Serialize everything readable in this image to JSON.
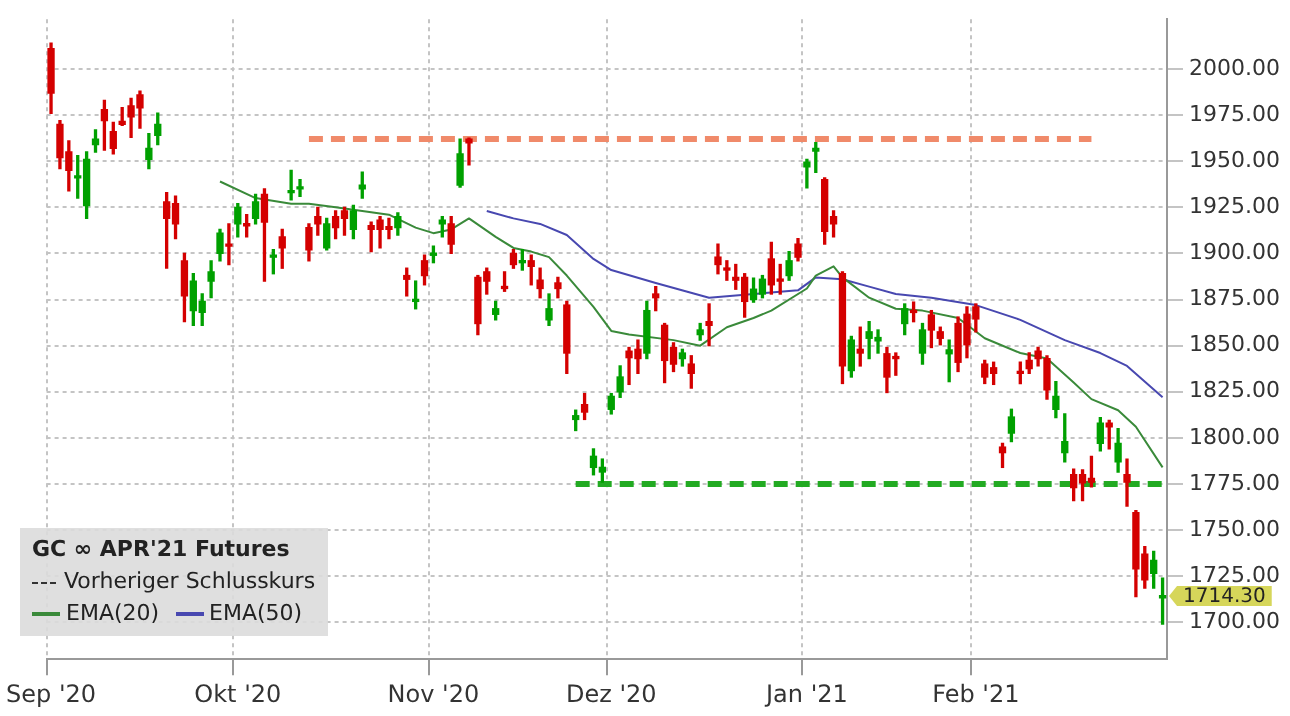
{
  "chart_data": {
    "type": "candlestick",
    "legend_title": "GC ∞ APR'21 Futures",
    "legend": "bottom left",
    "grid": true,
    "categories": [
      "Sep '20",
      null,
      null,
      null,
      null,
      null,
      null,
      null,
      null,
      null,
      null,
      null,
      null,
      null,
      null,
      null,
      null,
      null,
      null,
      null,
      null,
      "Okt '20",
      null,
      null,
      null,
      null,
      null,
      null,
      null,
      null,
      null,
      null,
      null,
      null,
      null,
      null,
      null,
      null,
      null,
      null,
      null,
      null,
      null,
      "Nov '20",
      null,
      null,
      null,
      null,
      null,
      null,
      null,
      null,
      null,
      null,
      null,
      null,
      null,
      null,
      null,
      null,
      null,
      null,
      null,
      "Dez '20",
      null,
      null,
      null,
      null,
      null,
      null,
      null,
      null,
      null,
      null,
      null,
      null,
      null,
      null,
      null,
      null,
      null,
      null,
      null,
      null,
      null,
      "Jan '21",
      null,
      null,
      null,
      null,
      null,
      null,
      null,
      null,
      null,
      null,
      null,
      null,
      null,
      null,
      null,
      null,
      null,
      null,
      "Feb '21",
      null,
      null,
      null,
      null,
      null,
      null,
      null,
      null,
      null,
      null,
      null,
      null,
      null,
      null,
      null,
      null,
      null,
      null,
      null,
      null,
      null
    ],
    "ohlc": [
      [
        2011,
        2014,
        1976,
        1987
      ],
      [
        1970,
        1972,
        1946,
        1952
      ],
      [
        1955,
        1961,
        1934,
        1945
      ],
      [
        1941,
        1953,
        1930,
        1942
      ],
      [
        1926,
        1955,
        1919,
        1951
      ],
      [
        1959,
        1967,
        1955,
        1962
      ],
      [
        1978,
        1983,
        1956,
        1972
      ],
      [
        1966,
        1971,
        1954,
        1957
      ],
      [
        1971.6,
        1979,
        1969.5,
        1970
      ],
      [
        1980,
        1984,
        1963,
        1974
      ],
      [
        1986,
        1988,
        1968,
        1979
      ],
      [
        1951,
        1965,
        1946,
        1957
      ],
      [
        1964,
        1976,
        1959,
        1970
      ],
      [
        1928,
        1933,
        1892,
        1919
      ],
      [
        1927,
        1931,
        1908,
        1916
      ],
      [
        1896,
        1900,
        1863,
        1877
      ],
      [
        1869,
        1889,
        1861,
        1885
      ],
      [
        1868,
        1878,
        1861,
        1874
      ],
      [
        1885,
        1896,
        1876,
        1890
      ],
      [
        1900,
        1913,
        1896,
        1911
      ],
      [
        1905,
        1916,
        1894,
        1904
      ],
      [
        1916,
        1927,
        1909,
        1925
      ],
      [
        1916,
        1921,
        1909,
        1915
      ],
      [
        1919,
        1932,
        1916,
        1928
      ],
      [
        1932,
        1935,
        1885,
        1917
      ],
      [
        1898,
        1902,
        1889,
        1899
      ],
      [
        1909,
        1913,
        1892,
        1903
      ],
      [
        1933,
        1945,
        1929,
        1934
      ],
      [
        1935,
        1940,
        1931,
        1936
      ],
      [
        1914,
        1916,
        1896,
        1902
      ],
      [
        1920,
        1925,
        1910,
        1916
      ],
      [
        1903,
        1919,
        1902,
        1916
      ],
      [
        1920,
        1923,
        1908,
        1914
      ],
      [
        1923,
        1925,
        1910,
        1919
      ],
      [
        1913,
        1926,
        1908,
        1923
      ],
      [
        1935,
        1944,
        1930,
        1937
      ],
      [
        1915,
        1917,
        1901,
        1913
      ],
      [
        1918,
        1920,
        1903,
        1913
      ],
      [
        1914.5,
        1919,
        1908,
        1913
      ],
      [
        1914,
        1922,
        1910,
        1920
      ],
      [
        1888,
        1892,
        1877,
        1886
      ],
      [
        1874,
        1885,
        1870,
        1875
      ],
      [
        1896,
        1899,
        1883,
        1888
      ],
      [
        1899,
        1904,
        1895,
        1900
      ],
      [
        1916,
        1920,
        1909,
        1918
      ],
      [
        1916,
        1920,
        1900,
        1905
      ],
      [
        1937,
        1962,
        1936,
        1954
      ],
      [
        1962,
        1962.5,
        1948,
        1960
      ],
      [
        1887,
        1888,
        1856,
        1862
      ],
      [
        1890,
        1892,
        1878,
        1885
      ],
      [
        1867,
        1874,
        1864,
        1870
      ],
      [
        1882,
        1890,
        1879.5,
        1881
      ],
      [
        1900,
        1902,
        1892,
        1894
      ],
      [
        1895,
        1902,
        1891,
        1896
      ],
      [
        1896,
        1899,
        1883,
        1893
      ],
      [
        1885.5,
        1892,
        1876,
        1881
      ],
      [
        1864,
        1878,
        1861,
        1870
      ],
      [
        1884,
        1887,
        1876,
        1881
      ],
      [
        1872,
        1874,
        1835,
        1846
      ],
      [
        1810,
        1815,
        1804,
        1812
      ],
      [
        1818,
        1824,
        1810,
        1814
      ],
      [
        1784,
        1794,
        1780,
        1790
      ],
      [
        1781.5,
        1788.5,
        1776,
        1784
      ],
      [
        1815.5,
        1824,
        1813,
        1822.5
      ],
      [
        1825,
        1839,
        1822,
        1833
      ],
      [
        1847,
        1849,
        1829,
        1843.5
      ],
      [
        1848,
        1853,
        1835,
        1843
      ],
      [
        1846,
        1874,
        1843,
        1869
      ],
      [
        1878,
        1882,
        1869,
        1876
      ],
      [
        1861,
        1862,
        1830,
        1842
      ],
      [
        1849,
        1851.5,
        1836,
        1840
      ],
      [
        1843,
        1848,
        1839,
        1846
      ],
      [
        1840,
        1844.5,
        1827,
        1835
      ],
      [
        1856,
        1862,
        1853,
        1858.5
      ],
      [
        1863,
        1872.6,
        1850,
        1861
      ],
      [
        1898,
        1905,
        1889,
        1894
      ],
      [
        1892,
        1896,
        1885.5,
        1891
      ],
      [
        1887,
        1894,
        1880.6,
        1885.5
      ],
      [
        1887,
        1889,
        1865.5,
        1874
      ],
      [
        1875,
        1886.6,
        1873.6,
        1880.6
      ],
      [
        1878,
        1888,
        1876,
        1886
      ],
      [
        1897,
        1906,
        1878,
        1883
      ],
      [
        1886,
        1894,
        1878,
        1885
      ],
      [
        1888,
        1901,
        1885.5,
        1896
      ],
      [
        1905,
        1908,
        1896,
        1898
      ],
      [
        1947,
        1951,
        1935.5,
        1949.5
      ],
      [
        1955.5,
        1960,
        1944,
        1957
      ],
      [
        1940,
        1941,
        1905,
        1912
      ],
      [
        1920,
        1923,
        1909,
        1916
      ],
      [
        1889,
        1890,
        1829.5,
        1839
      ],
      [
        1836.5,
        1855,
        1833,
        1853
      ],
      [
        1848,
        1860,
        1839,
        1846
      ],
      [
        1854,
        1863,
        1843,
        1857.5
      ],
      [
        1852.6,
        1858.5,
        1846,
        1854.4
      ],
      [
        1845.6,
        1849,
        1824.6,
        1833
      ],
      [
        1844,
        1846,
        1834,
        1843
      ],
      [
        1862,
        1872.6,
        1856,
        1870
      ],
      [
        1869,
        1873.6,
        1863,
        1868
      ],
      [
        1846,
        1862,
        1840,
        1858.5
      ],
      [
        1866.6,
        1869,
        1849,
        1858.5
      ],
      [
        1857.5,
        1860,
        1850.5,
        1854
      ],
      [
        1845.6,
        1853,
        1830.5,
        1847.7
      ],
      [
        1862,
        1865.5,
        1836,
        1841
      ],
      [
        1867,
        1871,
        1843.5,
        1850.5
      ],
      [
        1871,
        1872.6,
        1857.5,
        1864.5
      ],
      [
        1840,
        1842,
        1829.5,
        1833
      ],
      [
        1838,
        1841,
        1829,
        1835
      ],
      [
        1795,
        1797,
        1784,
        1792
      ],
      [
        1802.6,
        1815.5,
        1798,
        1811.3
      ],
      [
        1836,
        1841,
        1829.5,
        1835
      ],
      [
        1842,
        1846,
        1835,
        1837.5
      ],
      [
        1847,
        1849,
        1839,
        1843
      ],
      [
        1843,
        1844.5,
        1821,
        1826
      ],
      [
        1815.5,
        1830.5,
        1811,
        1822.5
      ],
      [
        1792,
        1813,
        1787,
        1798
      ],
      [
        1780,
        1783,
        1766,
        1773
      ],
      [
        1780,
        1782.6,
        1766,
        1775.6
      ],
      [
        1778,
        1790,
        1773.5,
        1776
      ],
      [
        1797,
        1811,
        1793,
        1808
      ],
      [
        1808,
        1809.5,
        1794,
        1806
      ],
      [
        1787,
        1805,
        1781.5,
        1797
      ],
      [
        1780,
        1788.5,
        1763,
        1776
      ],
      [
        1759.5,
        1760.5,
        1714,
        1729
      ],
      [
        1737,
        1741,
        1718.5,
        1723
      ],
      [
        1726.6,
        1738.5,
        1718.5,
        1733.6
      ],
      [
        1713.3,
        1724,
        1699,
        1714.3
      ]
    ],
    "colors": [
      "#d40000",
      "#d40000",
      "#d40000",
      "#00a000",
      "#00a000",
      "#00a000",
      "#d40000",
      "#d40000",
      "#d40000",
      "#d40000",
      "#d40000",
      "#00a000",
      "#00a000",
      "#d40000",
      "#d40000",
      "#d40000",
      "#00a000",
      "#00a000",
      "#00a000",
      "#00a000",
      "#d40000",
      "#00a000",
      "#d40000",
      "#00a000",
      "#d40000",
      "#00a000",
      "#d40000",
      "#00a000",
      "#00a000",
      "#d40000",
      "#d40000",
      "#00a000",
      "#d40000",
      "#d40000",
      "#00a000",
      "#00a000",
      "#d40000",
      "#d40000",
      "#d40000",
      "#00a000",
      "#d40000",
      "#00a000",
      "#d40000",
      "#00a000",
      "#00a000",
      "#d40000",
      "#00a000",
      "#d40000",
      "#d40000",
      "#d40000",
      "#00a000",
      "#d40000",
      "#d40000",
      "#00a000",
      "#d40000",
      "#d40000",
      "#00a000",
      "#d40000",
      "#d40000",
      "#00a000",
      "#d40000",
      "#00a000",
      "#00a000",
      "#00a000",
      "#00a000",
      "#d40000",
      "#d40000",
      "#00a000",
      "#d40000",
      "#d40000",
      "#d40000",
      "#00a000",
      "#d40000",
      "#00a000",
      "#d40000",
      "#d40000",
      "#d40000",
      "#d40000",
      "#d40000",
      "#00a000",
      "#00a000",
      "#d40000",
      "#d40000",
      "#00a000",
      "#d40000",
      "#00a000",
      "#00a000",
      "#d40000",
      "#d40000",
      "#d40000",
      "#00a000",
      "#d40000",
      "#00a000",
      "#00a000",
      "#d40000",
      "#d40000",
      "#00a000",
      "#d40000",
      "#00a000",
      "#d40000",
      "#d40000",
      "#00a000",
      "#d40000",
      "#d40000",
      "#d40000",
      "#d40000",
      "#d40000",
      "#d40000",
      "#00a000",
      "#d40000",
      "#d40000",
      "#d40000",
      "#d40000",
      "#00a000",
      "#00a000",
      "#d40000",
      "#d40000",
      "#d40000",
      "#00a000",
      "#d40000",
      "#00a000",
      "#d40000",
      "#d40000",
      "#d40000",
      "#00a000",
      "#00a000"
    ],
    "series": [
      {
        "name": "EMA(20)",
        "type": "line",
        "color": "#3a8a3a",
        "values": [
          null,
          null,
          null,
          null,
          null,
          null,
          null,
          null,
          null,
          null,
          null,
          null,
          null,
          null,
          null,
          null,
          null,
          null,
          null,
          1939,
          null,
          null,
          null,
          1930,
          null,
          null,
          null,
          1927,
          null,
          1927,
          null,
          null,
          1925,
          null,
          null,
          null,
          null,
          null,
          1921,
          null,
          null,
          1914,
          null,
          1911,
          null,
          1913,
          null,
          1919,
          null,
          null,
          1909,
          null,
          1903,
          null,
          1901,
          null,
          1898,
          null,
          1888,
          null,
          null,
          1871,
          null,
          1858,
          null,
          1856,
          null,
          null,
          null,
          null,
          1853,
          null,
          null,
          1850,
          null,
          null,
          1860,
          null,
          null,
          1865,
          null,
          1869,
          null,
          null,
          null,
          1881,
          1888,
          null,
          1893,
          1887,
          null,
          null,
          1876,
          null,
          null,
          1870,
          null,
          null,
          1869,
          null,
          null,
          null,
          1865,
          null,
          null,
          1854,
          null,
          null,
          null,
          1846,
          null,
          null,
          1843,
          null,
          null,
          1830,
          null,
          1821,
          null,
          null,
          1815,
          null,
          1806,
          null,
          null,
          1784
        ]
      },
      {
        "name": "EMA(50)",
        "type": "line",
        "color": "#4848b0",
        "values": [
          null,
          null,
          null,
          null,
          null,
          null,
          null,
          null,
          null,
          null,
          null,
          null,
          null,
          null,
          null,
          null,
          null,
          null,
          null,
          null,
          null,
          null,
          null,
          null,
          null,
          null,
          null,
          null,
          null,
          null,
          null,
          null,
          null,
          null,
          null,
          null,
          null,
          null,
          null,
          null,
          null,
          null,
          null,
          null,
          null,
          null,
          null,
          null,
          null,
          1923,
          null,
          null,
          1919,
          null,
          null,
          1916,
          null,
          null,
          1910,
          null,
          null,
          1897,
          null,
          1891,
          null,
          null,
          null,
          null,
          1884,
          null,
          null,
          null,
          null,
          null,
          1876,
          null,
          null,
          null,
          null,
          1878,
          null,
          null,
          null,
          null,
          1880,
          null,
          1887,
          null,
          null,
          1886,
          null,
          null,
          1882,
          null,
          null,
          1878,
          null,
          null,
          null,
          1876,
          null,
          null,
          null,
          null,
          1872,
          null,
          null,
          null,
          null,
          1864,
          null,
          null,
          null,
          null,
          1853,
          null,
          null,
          null,
          1846,
          null,
          null,
          1839,
          null,
          null,
          null,
          1822
        ]
      },
      {
        "type": "line",
        "color": "#f08a6a",
        "line_style": "dashed",
        "values": [
          null,
          null,
          null,
          null,
          null,
          null,
          null,
          null,
          null,
          null,
          null,
          null,
          null,
          null,
          null,
          null,
          null,
          null,
          null,
          null,
          null,
          null,
          null,
          null,
          null,
          null,
          null,
          null,
          null,
          1962,
          null,
          null,
          null,
          null,
          null,
          null,
          null,
          null,
          null,
          null,
          null,
          null,
          null,
          null,
          null,
          null,
          null,
          null,
          null,
          null,
          null,
          null,
          null,
          null,
          null,
          null,
          null,
          null,
          null,
          null,
          null,
          null,
          null,
          null,
          null,
          null,
          null,
          null,
          null,
          null,
          null,
          null,
          null,
          null,
          null,
          null,
          null,
          null,
          null,
          null,
          null,
          null,
          null,
          null,
          null,
          null,
          null,
          null,
          null,
          null,
          null,
          null,
          null,
          null,
          null,
          null,
          null,
          null,
          null,
          null,
          null,
          null,
          null,
          null,
          null,
          null,
          null,
          null,
          null,
          null,
          null,
          null,
          null,
          null,
          null,
          null,
          null,
          1962,
          null,
          null,
          null,
          null,
          null,
          null,
          null,
          null
        ]
      },
      {
        "type": "line",
        "color": "#22aa22",
        "line_style": "dashed",
        "values": [
          null,
          null,
          null,
          null,
          null,
          null,
          null,
          null,
          null,
          null,
          null,
          null,
          null,
          null,
          null,
          null,
          null,
          null,
          null,
          null,
          null,
          null,
          null,
          null,
          null,
          null,
          null,
          null,
          null,
          null,
          null,
          null,
          null,
          null,
          null,
          null,
          null,
          null,
          null,
          null,
          null,
          null,
          null,
          null,
          null,
          null,
          null,
          null,
          null,
          null,
          null,
          null,
          null,
          null,
          null,
          null,
          null,
          null,
          null,
          1775,
          null,
          null,
          null,
          null,
          null,
          null,
          null,
          null,
          null,
          null,
          null,
          null,
          null,
          null,
          null,
          null,
          null,
          null,
          null,
          null,
          null,
          null,
          null,
          null,
          null,
          null,
          null,
          null,
          null,
          null,
          null,
          null,
          null,
          null,
          null,
          null,
          null,
          null,
          null,
          null,
          null,
          null,
          null,
          null,
          null,
          null,
          null,
          null,
          null,
          null,
          null,
          null,
          null,
          null,
          null,
          null,
          null,
          null,
          null,
          null,
          null,
          null,
          null,
          null,
          null,
          1775
        ]
      }
    ],
    "ylim": [
      1680,
      2027
    ],
    "yticks": [
      {
        "value": 1700,
        "label": "1700.00"
      },
      {
        "value": 1725,
        "label": "1725.00"
      },
      {
        "value": 1750,
        "label": "1750.00"
      },
      {
        "value": 1775,
        "label": "1775.00"
      },
      {
        "value": 1800,
        "label": "1800.00"
      },
      {
        "value": 1825,
        "label": "1825.00"
      },
      {
        "value": 1850,
        "label": "1850.00"
      },
      {
        "value": 1875,
        "label": "1875.00"
      },
      {
        "value": 1900,
        "label": "1900.00"
      },
      {
        "value": 1925,
        "label": "1925.00"
      },
      {
        "value": 1950,
        "label": "1950.00"
      },
      {
        "value": 1975,
        "label": "1975.00"
      },
      {
        "value": 2000,
        "label": "2000.00"
      }
    ],
    "value_labels": [
      null,
      null,
      null,
      null,
      null,
      null,
      null,
      null,
      null,
      null,
      null,
      null,
      null,
      null,
      null,
      null,
      null,
      null,
      null,
      null,
      null,
      null,
      null,
      null,
      null,
      null,
      null,
      null,
      null,
      null,
      null,
      null,
      null,
      null,
      null,
      null,
      null,
      null,
      null,
      null,
      null,
      null,
      null,
      null,
      null,
      null,
      null,
      null,
      null,
      null,
      null,
      null,
      null,
      null,
      null,
      null,
      null,
      null,
      null,
      null,
      null,
      null,
      null,
      null,
      null,
      null,
      null,
      null,
      null,
      null,
      null,
      null,
      null,
      null,
      null,
      null,
      null,
      null,
      null,
      null,
      null,
      null,
      null,
      null,
      null,
      null,
      null,
      null,
      null,
      null,
      null,
      null,
      null,
      null,
      null,
      null,
      null,
      null,
      null,
      null,
      null,
      null,
      null,
      null,
      null,
      null,
      null,
      null,
      null,
      null,
      null,
      null,
      null,
      null,
      null,
      null,
      null,
      null,
      null,
      null,
      null,
      null,
      null,
      null,
      null,
      "1714.30"
    ],
    "annotations": [
      "Vorheriger Schlusskurs"
    ]
  }
}
